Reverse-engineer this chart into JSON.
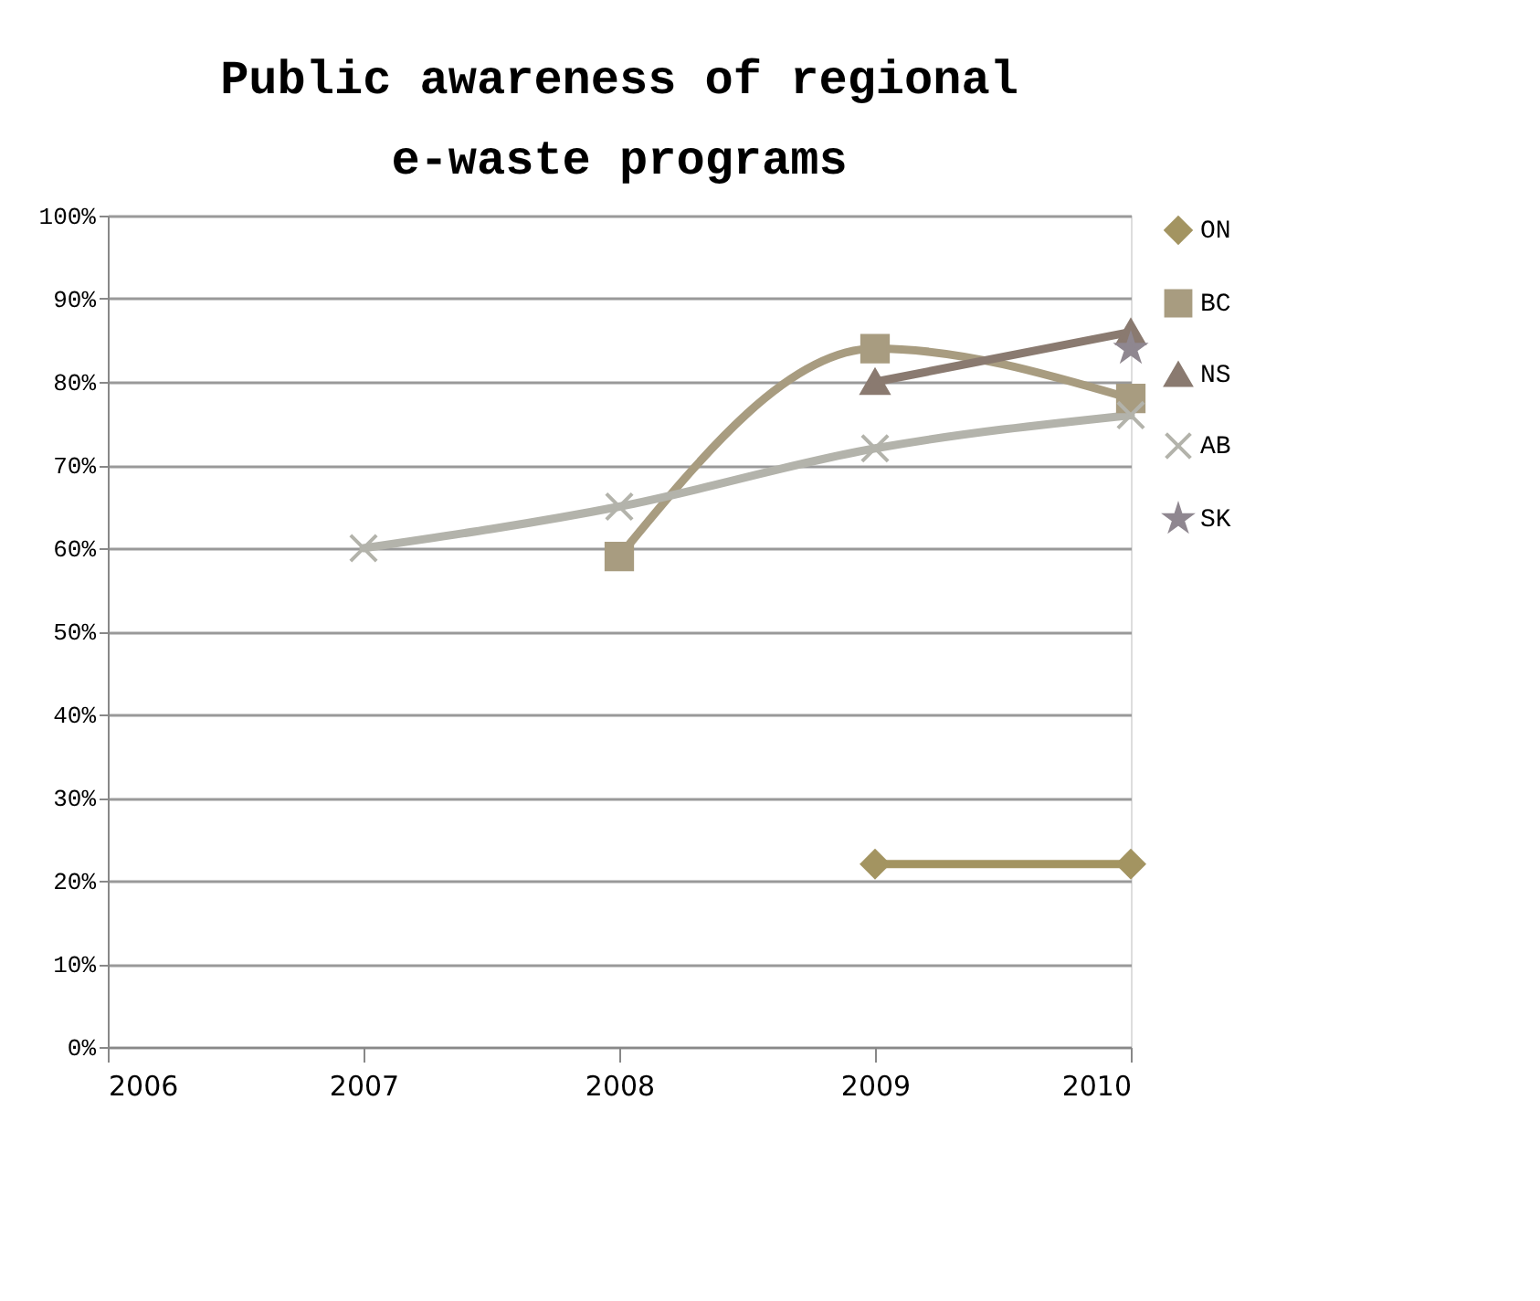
{
  "chart_data": {
    "type": "line",
    "title": [
      "Public awareness of regional",
      "e-waste programs"
    ],
    "xlim": [
      2006,
      2010
    ],
    "xticks": [
      2006,
      2007,
      2008,
      2009,
      2010
    ],
    "ylim": [
      0,
      100
    ],
    "yticks": [
      {
        "value": 0,
        "label": "0%"
      },
      {
        "value": 10,
        "label": "10%"
      },
      {
        "value": 20,
        "label": "20%"
      },
      {
        "value": 30,
        "label": "30%"
      },
      {
        "value": 40,
        "label": "40%"
      },
      {
        "value": 50,
        "label": "50%"
      },
      {
        "value": 60,
        "label": "60%"
      },
      {
        "value": 70,
        "label": "70%"
      },
      {
        "value": 80,
        "label": "80%"
      },
      {
        "value": 90,
        "label": "90%"
      },
      {
        "value": 100,
        "label": "100%"
      }
    ],
    "grid": "y",
    "legend": "right",
    "line_style": "solid",
    "series": [
      {
        "name": "ON",
        "color": "#a39461",
        "marker": "diamond",
        "x": [
          2009,
          2010
        ],
        "values": [
          22,
          22
        ]
      },
      {
        "name": "BC",
        "color": "#a89c80",
        "marker": "square",
        "x": [
          2008,
          2009,
          2010
        ],
        "values": [
          59,
          84,
          78
        ]
      },
      {
        "name": "NS",
        "color": "#8a7a70",
        "marker": "triangle",
        "x": [
          2009,
          2010
        ],
        "values": [
          80,
          86
        ]
      },
      {
        "name": "AB",
        "color": "#b3b3ab",
        "marker": "cross",
        "x": [
          2007,
          2008,
          2009,
          2010
        ],
        "values": [
          60,
          65,
          72,
          76
        ]
      },
      {
        "name": "SK",
        "color": "#8f8790",
        "marker": "star",
        "x": [
          2010
        ],
        "values": [
          84
        ]
      }
    ]
  }
}
